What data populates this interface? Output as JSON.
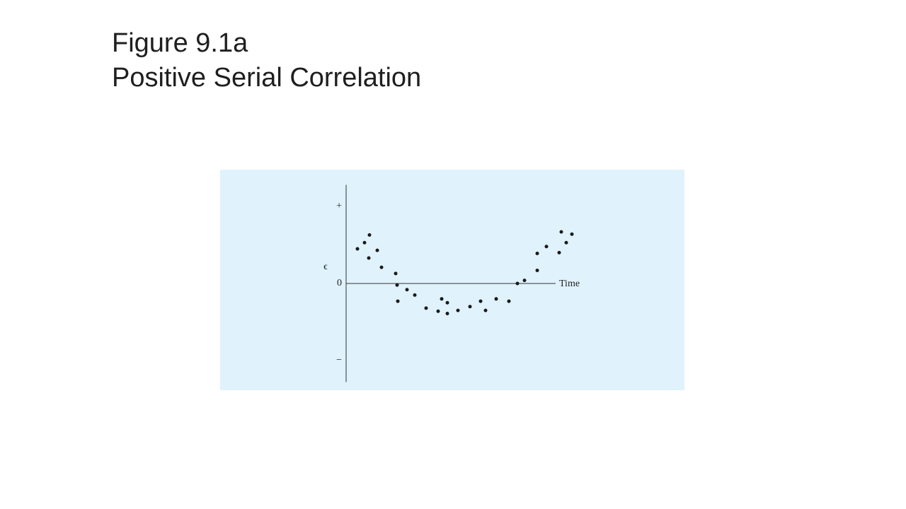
{
  "chart_data": {
    "type": "scatter",
    "title": "Figure 9.1a",
    "subtitle": "Positive Serial Correlation",
    "x_label": "Time",
    "y_label": "ϵ",
    "color": "#1a1a1a",
    "x": [
      1.6,
      2.6,
      3.3,
      3.2,
      4.4,
      5.0,
      7.0,
      7.2,
      7.3,
      8.6,
      9.7,
      11.3,
      13.0,
      13.5,
      14.3,
      14.3,
      15.8,
      17.5,
      19.0,
      19.7,
      21.2,
      23.0,
      24.2,
      25.2,
      27.0,
      27.0,
      28.3,
      30.1,
      30.4,
      31.1,
      31.9
    ],
    "values": [
      0.45,
      0.53,
      0.63,
      0.33,
      0.43,
      0.21,
      0.13,
      -0.02,
      -0.23,
      -0.08,
      -0.15,
      -0.32,
      -0.36,
      -0.2,
      -0.25,
      -0.39,
      -0.35,
      -0.3,
      -0.23,
      -0.35,
      -0.2,
      -0.23,
      0,
      0.04,
      0.17,
      0.39,
      0.48,
      0.4,
      0.67,
      0.53,
      0.64
    ],
    "xlim": [
      0,
      32
    ],
    "ylim": [
      -1.28,
      1.28
    ],
    "yticks": [
      {
        "value": 1,
        "label": "+"
      },
      0,
      {
        "value": -1,
        "label": "−"
      }
    ]
  }
}
